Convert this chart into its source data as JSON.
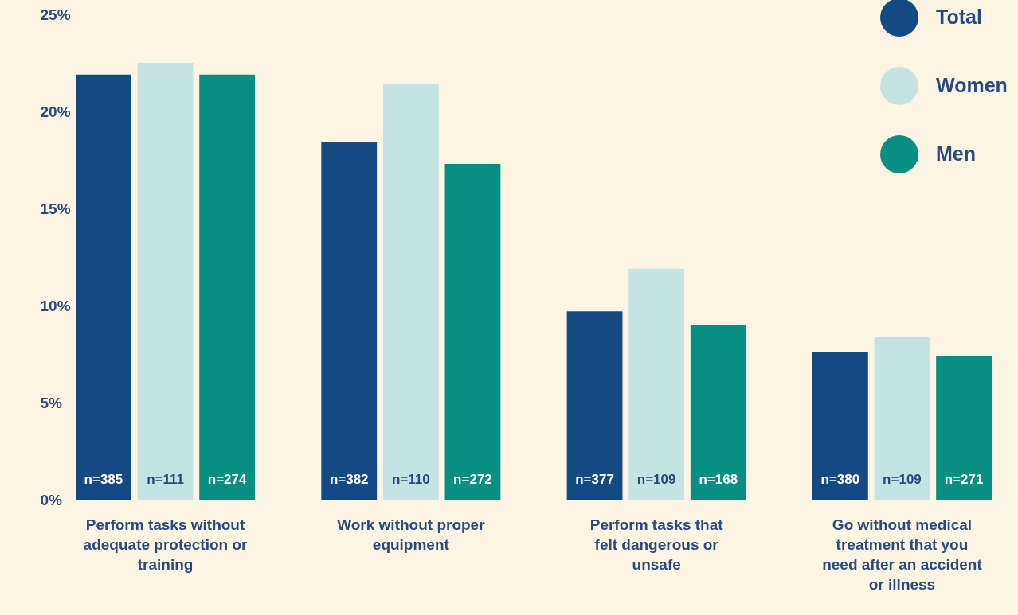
{
  "chart_data": {
    "type": "bar",
    "categories": [
      "Perform tasks without adequate protection or training",
      "Work without proper equipment",
      "Perform tasks that felt dangerous or unsafe",
      "Go without medical treatment that you need after an accident or illness"
    ],
    "series": [
      {
        "name": "Total",
        "color": "#134a84",
        "values": [
          21.9,
          18.4,
          9.7,
          7.6
        ]
      },
      {
        "name": "Women",
        "color": "#c5e3e3",
        "values": [
          22.5,
          21.4,
          11.9,
          8.4
        ]
      },
      {
        "name": "Men",
        "color": "#078f82",
        "values": [
          21.9,
          17.3,
          9.0,
          7.4
        ]
      }
    ],
    "ylim": [
      0,
      25
    ],
    "yticks": [
      {
        "value": 0,
        "label": "0%"
      },
      {
        "value": 5,
        "label": "5%"
      },
      {
        "value": 10,
        "label": "10%"
      },
      {
        "value": 15,
        "label": "15%"
      },
      {
        "value": 20,
        "label": "20%"
      },
      {
        "value": 25,
        "label": "25%"
      }
    ],
    "grid": false,
    "legend": "top right",
    "annotations": [
      "n=385",
      "n=111",
      "n=274",
      "n=382",
      "n=110",
      "n=272",
      "n=377",
      "n=109",
      "n=168",
      "n=380",
      "n=109",
      "n=271"
    ]
  }
}
